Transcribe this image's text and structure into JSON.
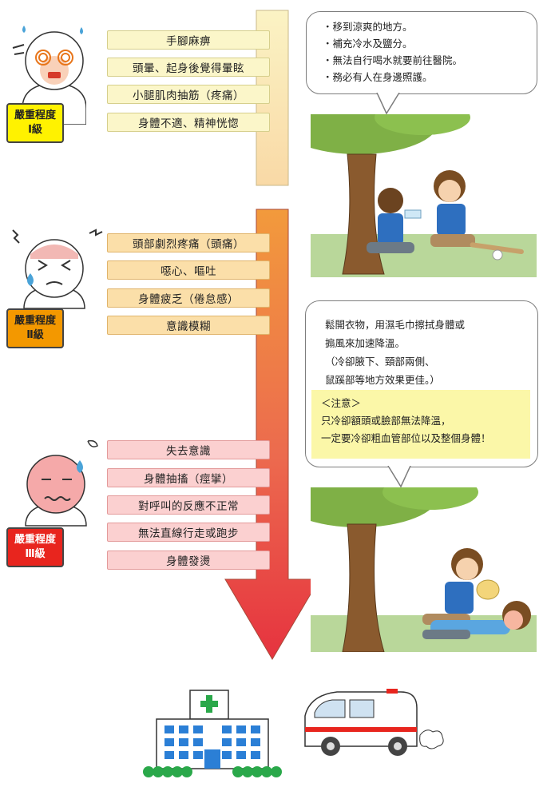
{
  "levels": [
    {
      "badge_line1": "嚴重程度",
      "badge_line2": "Ⅰ級",
      "badge_color": "#fff200",
      "symptoms": [
        "手腳麻痹",
        "頭暈、起身後覺得暈眩",
        "小腿肌肉抽筋（疼痛）",
        "身體不適、精神恍惚"
      ]
    },
    {
      "badge_line1": "嚴重程度",
      "badge_line2": "Ⅱ級",
      "badge_color": "#f39800",
      "symptoms": [
        "頭部劇烈疼痛（頭痛）",
        "噁心、嘔吐",
        "身體疲乏（倦怠感）",
        "意識模糊"
      ]
    },
    {
      "badge_line1": "嚴重程度",
      "badge_line2": "Ⅲ級",
      "badge_color": "#e8251e",
      "symptoms": [
        "失去意識",
        "身體抽搐（痙攣）",
        "對呼叫的反應不正常",
        "無法直線行走或跑步",
        "身體發燙"
      ]
    }
  ],
  "advice1": {
    "lines": [
      "・移到涼爽的地方。",
      "・補充冷水及鹽分。",
      "・無法自行喝水就要前往醫院。",
      "・務必有人在身邊照護。"
    ]
  },
  "advice2": {
    "lines": [
      "鬆開衣物，用濕毛巾擦拭身體或",
      "搧風來加速降溫。",
      "（冷卻腋下、頸部兩側、",
      "鼠蹊部等地方效果更佳。）"
    ],
    "note_title": "＜注意＞",
    "note_lines": [
      "只冷卻額頭或臉部無法降溫，",
      "一定要冷卻粗血管部位以及整個身體！"
    ]
  },
  "icons": {
    "face1": "dizzy-face-icon",
    "face2": "headache-face-icon",
    "face3": "unconscious-face-icon",
    "scene1": "boy-drinking-water-under-tree-icon",
    "scene2": "boy-fanning-collapsed-boy-icon",
    "hospital": "hospital-icon",
    "ambulance": "ambulance-icon"
  }
}
